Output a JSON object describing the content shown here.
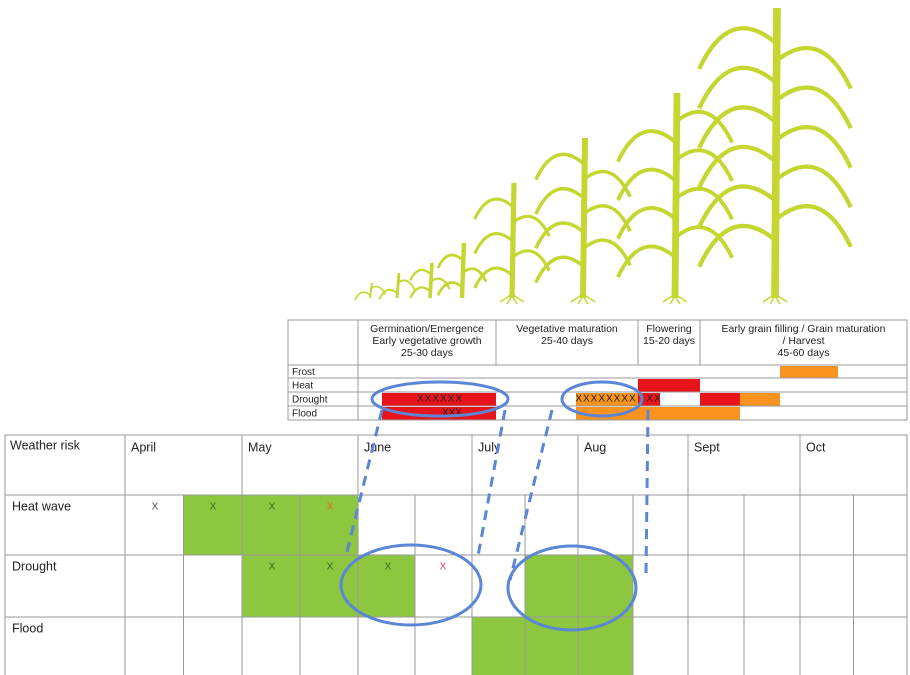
{
  "stage_table": {
    "stages": [
      {
        "lines": [
          "Germination/Emergence",
          "Early vegetative growth",
          "25-30 days"
        ]
      },
      {
        "lines": [
          "Vegetative maturation",
          "25-40 days"
        ]
      },
      {
        "lines": [
          "Flowering",
          "15-20 days"
        ]
      },
      {
        "lines": [
          "Early grain filling / Grain maturation",
          "/ Harvest",
          "45-60 days"
        ]
      }
    ],
    "rows": [
      "Frost",
      "Heat",
      "Drought",
      "Flood"
    ],
    "drought_marks": [
      "XXXXXX",
      "XXXXXXXX",
      "XX"
    ],
    "flood_marks": [
      "XXX"
    ]
  },
  "risk_table": {
    "header": "Weather risk",
    "months": [
      "April",
      "May",
      "June",
      "July",
      "Aug",
      "Sept",
      "Oct"
    ],
    "rows": [
      {
        "label": "Heat wave",
        "marks": [
          "X",
          "X",
          "X",
          "X"
        ]
      },
      {
        "label": "Drought",
        "marks": [
          "X",
          "X",
          "X",
          "X"
        ]
      },
      {
        "label": "Flood",
        "marks": []
      }
    ]
  }
}
